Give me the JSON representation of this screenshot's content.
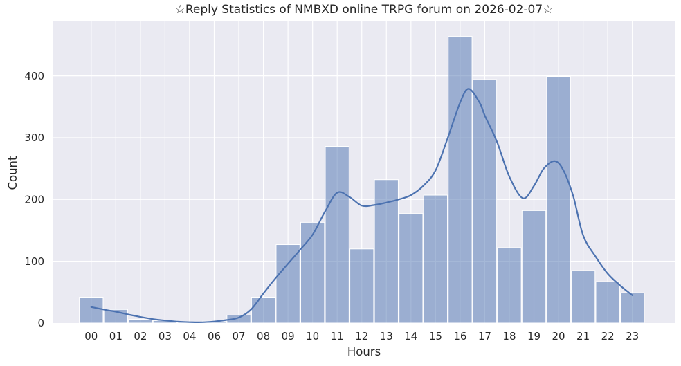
{
  "chart_data": {
    "type": "bar",
    "subtype": "histogram_with_kde",
    "title": "☆Reply Statistics of NMBXD online TRPG forum on 2026-02-07☆",
    "xlabel": "Hours",
    "ylabel": "Count",
    "categories": [
      "00",
      "01",
      "02",
      "03",
      "04",
      "06",
      "07",
      "08",
      "09",
      "10",
      "11",
      "12",
      "13",
      "14",
      "15",
      "16",
      "17",
      "18",
      "19",
      "20",
      "21",
      "22",
      "23"
    ],
    "values": [
      42,
      22,
      6,
      4,
      2,
      3,
      13,
      42,
      127,
      163,
      286,
      120,
      232,
      177,
      207,
      464,
      394,
      122,
      182,
      399,
      85,
      67,
      49
    ],
    "yticks": [
      0,
      100,
      200,
      300,
      400
    ],
    "ylim": [
      0,
      488
    ],
    "grid": true,
    "legend_visible": false,
    "kde_line": {
      "name": "kde-density-curve",
      "points": [
        [
          0,
          26
        ],
        [
          0.5,
          22
        ],
        [
          1,
          18.5
        ],
        [
          1.5,
          14
        ],
        [
          2,
          10
        ],
        [
          2.5,
          6.5
        ],
        [
          3,
          4.2
        ],
        [
          3.5,
          2.5
        ],
        [
          4,
          1.5
        ],
        [
          4.5,
          1.3
        ],
        [
          5,
          2.6
        ],
        [
          5.5,
          5
        ],
        [
          6,
          9
        ],
        [
          6.5,
          22
        ],
        [
          7,
          48
        ],
        [
          7.5,
          73
        ],
        [
          8,
          96
        ],
        [
          8.5,
          119
        ],
        [
          9,
          143
        ],
        [
          9.5,
          180
        ],
        [
          10,
          211
        ],
        [
          10.5,
          204
        ],
        [
          11,
          190
        ],
        [
          11.5,
          191
        ],
        [
          12,
          195
        ],
        [
          12.5,
          200
        ],
        [
          13,
          207
        ],
        [
          13.5,
          222
        ],
        [
          14,
          247
        ],
        [
          14.5,
          300
        ],
        [
          15,
          357
        ],
        [
          15.35,
          379
        ],
        [
          15.8,
          356
        ],
        [
          16,
          336
        ],
        [
          16.5,
          293
        ],
        [
          17,
          237
        ],
        [
          17.55,
          202
        ],
        [
          18,
          222
        ],
        [
          18.4,
          250
        ],
        [
          18.85,
          262
        ],
        [
          19.2,
          247
        ],
        [
          19.6,
          205
        ],
        [
          20,
          142
        ],
        [
          20.5,
          108
        ],
        [
          21,
          80
        ],
        [
          21.5,
          61
        ],
        [
          22,
          45
        ]
      ]
    },
    "colors": {
      "figure_bg": "#ffffff",
      "plot_bg": "#eaeaf2",
      "grid": "#ffffff",
      "bar_base": "#4c72b0",
      "bar_alpha": 0.5,
      "bar_edge": "#ffffff",
      "line": "#4c72b0",
      "text": "#262626"
    }
  }
}
